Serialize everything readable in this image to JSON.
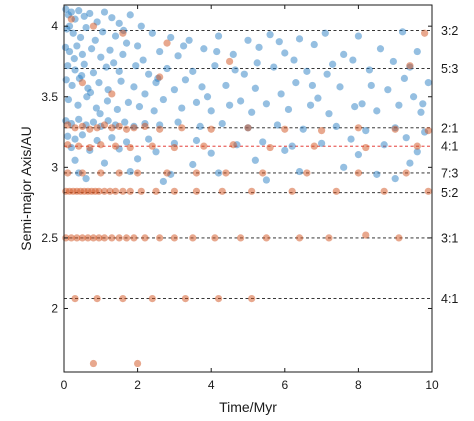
{
  "chart_data": {
    "type": "scatter",
    "title": "",
    "xlabel": "Time/Myr",
    "ylabel": "Semi-major Axis/AU",
    "xlim": [
      0,
      10
    ],
    "ylim": [
      1.55,
      4.15
    ],
    "xticks": [
      "0",
      "2",
      "4",
      "6",
      "8",
      "10"
    ],
    "yticks": [
      "2",
      "2.5",
      "3",
      "3.5",
      "4"
    ],
    "grid": false,
    "legend": null,
    "colors": {
      "blue_series": "#2b7fc4",
      "orange_series": "#d2511e",
      "resonance_line": "#1a1a1a",
      "highlight_resonance": "#e0201a"
    },
    "resonances": [
      {
        "label": "3:2",
        "a": 3.97,
        "highlight": false
      },
      {
        "label": "5:3",
        "a": 3.7,
        "highlight": false
      },
      {
        "label": "2:1",
        "a": 3.28,
        "highlight": false
      },
      {
        "label": "4:1",
        "a": 3.15,
        "highlight": true
      },
      {
        "label": "7:3",
        "a": 2.96,
        "highlight": false
      },
      {
        "label": "5:2",
        "a": 2.82,
        "highlight": false
      },
      {
        "label": "3:1",
        "a": 2.5,
        "highlight": false
      },
      {
        "label": "4:1",
        "a": 2.07,
        "highlight": false
      }
    ],
    "series": [
      {
        "color_key": "blue_series",
        "points": [
          [
            0.05,
            4.12
          ],
          [
            0.12,
            4.08
          ],
          [
            0.2,
            4.1
          ],
          [
            0.3,
            4.05
          ],
          [
            0.4,
            4.11
          ],
          [
            0.55,
            4.07
          ],
          [
            0.7,
            4.09
          ],
          [
            0.9,
            4.03
          ],
          [
            1.1,
            4.1
          ],
          [
            1.3,
            4.06
          ],
          [
            1.5,
            4.02
          ],
          [
            1.8,
            4.08
          ],
          [
            2.1,
            4.0
          ],
          [
            0.08,
            3.98
          ],
          [
            0.25,
            3.95
          ],
          [
            0.45,
            3.92
          ],
          [
            0.6,
            3.99
          ],
          [
            0.85,
            3.9
          ],
          [
            1.05,
            3.96
          ],
          [
            1.4,
            3.93
          ],
          [
            1.7,
            3.88
          ],
          [
            2.4,
            3.95
          ],
          [
            2.9,
            3.92
          ],
          [
            3.4,
            3.9
          ],
          [
            4.2,
            3.93
          ],
          [
            5.0,
            3.9
          ],
          [
            5.6,
            3.94
          ],
          [
            6.4,
            3.91
          ],
          [
            7.1,
            3.95
          ],
          [
            8.0,
            3.93
          ],
          [
            9.2,
            3.96
          ],
          [
            0.04,
            3.85
          ],
          [
            0.15,
            3.82
          ],
          [
            0.35,
            3.86
          ],
          [
            0.5,
            3.8
          ],
          [
            0.75,
            3.84
          ],
          [
            1.0,
            3.78
          ],
          [
            1.25,
            3.83
          ],
          [
            1.6,
            3.8
          ],
          [
            2.0,
            3.86
          ],
          [
            2.6,
            3.82
          ],
          [
            3.1,
            3.79
          ],
          [
            3.8,
            3.84
          ],
          [
            4.6,
            3.8
          ],
          [
            5.3,
            3.85
          ],
          [
            6.0,
            3.81
          ],
          [
            6.8,
            3.87
          ],
          [
            7.6,
            3.8
          ],
          [
            8.6,
            3.84
          ],
          [
            9.6,
            3.82
          ],
          [
            0.1,
            3.72
          ],
          [
            0.3,
            3.69
          ],
          [
            0.55,
            3.73
          ],
          [
            0.8,
            3.67
          ],
          [
            1.15,
            3.71
          ],
          [
            1.5,
            3.68
          ],
          [
            1.95,
            3.72
          ],
          [
            2.3,
            3.66
          ],
          [
            2.8,
            3.7
          ],
          [
            3.5,
            3.68
          ],
          [
            4.1,
            3.72
          ],
          [
            4.9,
            3.66
          ],
          [
            5.7,
            3.71
          ],
          [
            6.6,
            3.68
          ],
          [
            7.3,
            3.73
          ],
          [
            8.3,
            3.69
          ],
          [
            9.4,
            3.71
          ],
          [
            0.06,
            3.62
          ],
          [
            0.22,
            3.58
          ],
          [
            0.42,
            3.63
          ],
          [
            0.65,
            3.56
          ],
          [
            0.95,
            3.6
          ],
          [
            1.2,
            3.55
          ],
          [
            1.55,
            3.61
          ],
          [
            1.9,
            3.57
          ],
          [
            2.2,
            3.52
          ],
          [
            2.5,
            3.6
          ],
          [
            3.0,
            3.55
          ],
          [
            3.3,
            3.62
          ],
          [
            3.9,
            3.5
          ],
          [
            4.4,
            3.58
          ],
          [
            4.8,
            3.47
          ],
          [
            5.2,
            3.56
          ],
          [
            5.9,
            3.52
          ],
          [
            6.3,
            3.6
          ],
          [
            6.9,
            3.49
          ],
          [
            7.5,
            3.57
          ],
          [
            8.1,
            3.45
          ],
          [
            8.8,
            3.55
          ],
          [
            9.5,
            3.5
          ],
          [
            9.9,
            3.6
          ],
          [
            0.12,
            3.48
          ],
          [
            0.38,
            3.44
          ],
          [
            0.62,
            3.5
          ],
          [
            0.88,
            3.42
          ],
          [
            1.18,
            3.47
          ],
          [
            1.45,
            3.41
          ],
          [
            1.75,
            3.46
          ],
          [
            2.05,
            3.43
          ],
          [
            2.45,
            3.4
          ],
          [
            2.7,
            3.48
          ],
          [
            3.2,
            3.42
          ],
          [
            3.6,
            3.46
          ],
          [
            4.0,
            3.4
          ],
          [
            4.5,
            3.44
          ],
          [
            5.1,
            3.39
          ],
          [
            5.5,
            3.45
          ],
          [
            6.1,
            3.41
          ],
          [
            6.7,
            3.44
          ],
          [
            7.2,
            3.38
          ],
          [
            7.9,
            3.43
          ],
          [
            8.5,
            3.4
          ],
          [
            9.1,
            3.44
          ],
          [
            9.7,
            3.39
          ],
          [
            0.05,
            3.33
          ],
          [
            0.2,
            3.31
          ],
          [
            0.4,
            3.34
          ],
          [
            0.6,
            3.3
          ],
          [
            0.8,
            3.32
          ],
          [
            1.0,
            3.29
          ],
          [
            1.2,
            3.33
          ],
          [
            1.4,
            3.3
          ],
          [
            1.65,
            3.32
          ],
          [
            1.9,
            3.29
          ],
          [
            2.2,
            3.31
          ],
          [
            2.6,
            3.3
          ],
          [
            3.1,
            3.32
          ],
          [
            3.7,
            3.29
          ],
          [
            4.3,
            3.31
          ],
          [
            5.0,
            3.28
          ],
          [
            5.8,
            3.3
          ],
          [
            6.5,
            3.27
          ],
          [
            7.4,
            3.29
          ],
          [
            8.2,
            3.26
          ],
          [
            9.0,
            3.28
          ],
          [
            9.8,
            3.25
          ],
          [
            0.1,
            3.22
          ],
          [
            0.3,
            3.2
          ],
          [
            0.5,
            3.23
          ],
          [
            0.9,
            3.19
          ],
          [
            1.3,
            3.21
          ],
          [
            1.7,
            3.18
          ],
          [
            2.3,
            3.2
          ],
          [
            3.0,
            3.17
          ],
          [
            3.6,
            3.19
          ],
          [
            4.7,
            3.16
          ],
          [
            5.4,
            3.18
          ],
          [
            6.2,
            3.15
          ],
          [
            7.0,
            3.17
          ],
          [
            7.8,
            3.2
          ],
          [
            8.7,
            3.16
          ],
          [
            9.3,
            3.21
          ],
          [
            0.2,
            3.14
          ],
          [
            0.7,
            3.12
          ],
          [
            1.5,
            3.13
          ],
          [
            2.5,
            3.11
          ],
          [
            4.0,
            3.1
          ],
          [
            6.0,
            3.12
          ],
          [
            8.0,
            3.09
          ],
          [
            9.6,
            3.11
          ],
          [
            0.3,
            3.05
          ],
          [
            1.1,
            3.03
          ],
          [
            2.0,
            3.06
          ],
          [
            3.5,
            3.02
          ],
          [
            5.2,
            3.05
          ],
          [
            7.6,
            3.0
          ],
          [
            9.4,
            3.03
          ],
          [
            0.4,
            2.96
          ],
          [
            1.8,
            2.97
          ],
          [
            2.9,
            2.95
          ],
          [
            4.2,
            2.96
          ],
          [
            6.4,
            2.97
          ],
          [
            8.5,
            2.95
          ],
          [
            0.6,
            2.92
          ],
          [
            2.7,
            2.9
          ],
          [
            5.5,
            2.91
          ],
          [
            9.0,
            2.92
          ],
          [
            0.15,
            4.0
          ],
          [
            0.28,
            3.77
          ],
          [
            0.48,
            3.65
          ],
          [
            0.72,
            3.53
          ],
          [
            0.98,
            3.38
          ],
          [
            1.35,
            3.74
          ],
          [
            1.62,
            3.97
          ],
          [
            2.15,
            3.76
          ],
          [
            2.55,
            3.63
          ],
          [
            3.25,
            3.86
          ],
          [
            3.75,
            3.57
          ],
          [
            4.15,
            3.82
          ],
          [
            4.65,
            3.69
          ],
          [
            5.25,
            3.74
          ],
          [
            5.85,
            3.89
          ],
          [
            6.25,
            3.76
          ],
          [
            6.75,
            3.58
          ],
          [
            7.15,
            3.66
          ],
          [
            7.85,
            3.76
          ],
          [
            8.35,
            3.58
          ],
          [
            8.95,
            3.75
          ],
          [
            9.25,
            3.63
          ],
          [
            9.75,
            3.45
          ]
        ]
      },
      {
        "color_key": "orange_series",
        "points": [
          [
            0.2,
            4.05
          ],
          [
            0.8,
            4.0
          ],
          [
            1.6,
            3.95
          ],
          [
            2.8,
            3.88
          ],
          [
            4.5,
            3.75
          ],
          [
            9.8,
            3.95
          ],
          [
            9.4,
            3.72
          ],
          [
            0.5,
            3.6
          ],
          [
            1.3,
            3.52
          ],
          [
            2.6,
            3.64
          ],
          [
            0.1,
            3.3
          ],
          [
            0.3,
            3.28
          ],
          [
            0.5,
            3.29
          ],
          [
            0.7,
            3.27
          ],
          [
            0.9,
            3.28
          ],
          [
            1.1,
            3.3
          ],
          [
            1.3,
            3.28
          ],
          [
            1.5,
            3.29
          ],
          [
            1.7,
            3.27
          ],
          [
            1.9,
            3.28
          ],
          [
            2.2,
            3.29
          ],
          [
            2.6,
            3.27
          ],
          [
            3.2,
            3.28
          ],
          [
            4.0,
            3.27
          ],
          [
            5.0,
            3.28
          ],
          [
            6.0,
            3.27
          ],
          [
            7.0,
            3.26
          ],
          [
            8.0,
            3.28
          ],
          [
            9.0,
            3.27
          ],
          [
            9.9,
            3.26
          ],
          [
            0.1,
            3.16
          ],
          [
            0.4,
            3.15
          ],
          [
            0.7,
            3.14
          ],
          [
            1.0,
            3.16
          ],
          [
            1.4,
            3.15
          ],
          [
            1.8,
            3.14
          ],
          [
            2.4,
            3.15
          ],
          [
            3.0,
            3.14
          ],
          [
            3.8,
            3.15
          ],
          [
            4.6,
            3.16
          ],
          [
            5.6,
            3.14
          ],
          [
            6.8,
            3.15
          ],
          [
            8.2,
            3.14
          ],
          [
            9.6,
            3.15
          ],
          [
            0.1,
            2.96
          ],
          [
            0.5,
            2.96
          ],
          [
            1.0,
            2.96
          ],
          [
            1.5,
            2.96
          ],
          [
            2.0,
            2.96
          ],
          [
            2.8,
            2.96
          ],
          [
            3.6,
            2.96
          ],
          [
            4.4,
            2.96
          ],
          [
            5.4,
            2.96
          ],
          [
            6.6,
            2.96
          ],
          [
            8.0,
            2.96
          ],
          [
            9.3,
            2.96
          ],
          [
            0.05,
            2.83
          ],
          [
            0.15,
            2.83
          ],
          [
            0.25,
            2.83
          ],
          [
            0.35,
            2.83
          ],
          [
            0.45,
            2.83
          ],
          [
            0.55,
            2.83
          ],
          [
            0.65,
            2.83
          ],
          [
            0.75,
            2.83
          ],
          [
            0.85,
            2.83
          ],
          [
            0.95,
            2.83
          ],
          [
            1.1,
            2.83
          ],
          [
            1.25,
            2.83
          ],
          [
            1.4,
            2.83
          ],
          [
            1.6,
            2.83
          ],
          [
            1.8,
            2.83
          ],
          [
            2.1,
            2.83
          ],
          [
            2.5,
            2.83
          ],
          [
            3.0,
            2.83
          ],
          [
            3.6,
            2.83
          ],
          [
            4.3,
            2.83
          ],
          [
            5.1,
            2.83
          ],
          [
            6.2,
            2.83
          ],
          [
            7.4,
            2.83
          ],
          [
            8.7,
            2.83
          ],
          [
            9.9,
            2.83
          ],
          [
            0.05,
            2.5
          ],
          [
            0.2,
            2.5
          ],
          [
            0.35,
            2.5
          ],
          [
            0.5,
            2.5
          ],
          [
            0.65,
            2.5
          ],
          [
            0.8,
            2.5
          ],
          [
            0.95,
            2.5
          ],
          [
            1.1,
            2.5
          ],
          [
            1.3,
            2.5
          ],
          [
            1.5,
            2.5
          ],
          [
            1.7,
            2.5
          ],
          [
            1.9,
            2.5
          ],
          [
            2.2,
            2.5
          ],
          [
            2.6,
            2.5
          ],
          [
            3.0,
            2.5
          ],
          [
            3.5,
            2.5
          ],
          [
            4.1,
            2.5
          ],
          [
            4.8,
            2.5
          ],
          [
            5.5,
            2.5
          ],
          [
            6.4,
            2.5
          ],
          [
            7.2,
            2.5
          ],
          [
            8.2,
            2.52
          ],
          [
            9.1,
            2.5
          ],
          [
            0.3,
            2.07
          ],
          [
            0.9,
            2.07
          ],
          [
            1.6,
            2.07
          ],
          [
            2.4,
            2.07
          ],
          [
            3.3,
            2.07
          ],
          [
            4.2,
            2.07
          ],
          [
            5.1,
            2.07
          ],
          [
            0.8,
            1.61
          ],
          [
            2.0,
            1.61
          ]
        ]
      }
    ]
  }
}
